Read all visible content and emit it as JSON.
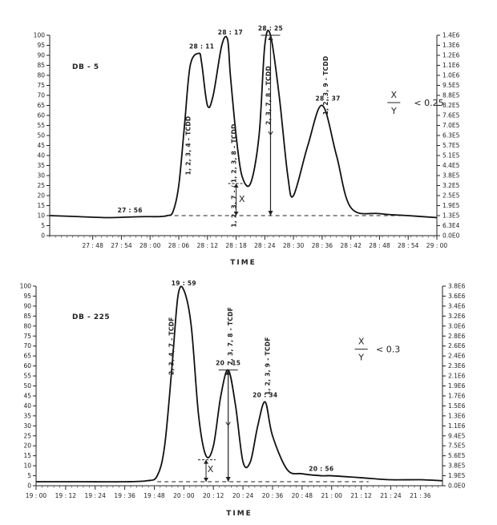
{
  "chart_data": [
    {
      "type": "line",
      "title": "DB - 5",
      "xlabel": "TIME",
      "x_ticks": [
        "27 : 48",
        "27 : 54",
        "28 : 00",
        "28 : 06",
        "28 : 12",
        "28 : 18",
        "28 : 24",
        "28 : 30",
        "28 : 36",
        "28 : 42",
        "28 : 48",
        "28 : 54",
        "29 : 00"
      ],
      "xlim_min": [
        27.65,
        29.0
      ],
      "left_ticks": [
        "0",
        "5",
        "10",
        "15",
        "20",
        "25",
        "30",
        "35",
        "40",
        "45",
        "50",
        "55",
        "60",
        "65",
        "70",
        "75",
        "80",
        "85",
        "90",
        "95",
        "100"
      ],
      "ylim": [
        0,
        100
      ],
      "right_ticks": [
        "0.0E0",
        "6.3E4",
        "1.3E5",
        "1.9E5",
        "2.5E5",
        "3.2E5",
        "3.8E5",
        "4.4E5",
        "5.1E5",
        "5.7E5",
        "6.3E5",
        "7.0E5",
        "7.6E5",
        "8.2E5",
        "8.8E5",
        "9.5E5",
        "1.0E6",
        "1.1E6",
        "1.2E6",
        "1.3E6",
        "1.4E6"
      ],
      "right_ylim": [
        0,
        1400000.0
      ],
      "series": [
        {
          "x": [
            27.65,
            27.75,
            27.85,
            27.93,
            27.98,
            28.03,
            28.06,
            28.08,
            28.1,
            28.12,
            28.14,
            28.17,
            28.18,
            28.2,
            28.22,
            28.25,
            28.27,
            28.28,
            28.3,
            28.32,
            28.35,
            28.38,
            28.4,
            28.42,
            28.45,
            28.48,
            28.5,
            28.55,
            28.6,
            28.65,
            28.7,
            28.8,
            28.9,
            29.0
          ],
          "y": [
            10,
            9.5,
            9,
            9.3,
            9.5,
            9.5,
            10,
            12,
            25,
            55,
            85,
            91,
            86,
            65,
            70,
            95,
            98,
            80,
            50,
            30,
            26,
            50,
            95,
            100,
            70,
            30,
            20,
            45,
            65,
            40,
            14,
            11,
            10,
            9
          ]
        }
      ],
      "annotations": [
        {
          "text": "28 : 11",
          "x": 28.18,
          "y": 91
        },
        {
          "text": "28 : 17",
          "x": 28.28,
          "y": 98
        },
        {
          "text": "28 : 25",
          "x": 28.42,
          "y": 100
        },
        {
          "text": "28 : 37",
          "x": 28.62,
          "y": 65
        },
        {
          "text": "27 : 56",
          "x": 27.93,
          "y": 9.3
        },
        {
          "text": "1, 2, 3, 4 - TCDD",
          "x": 28.14,
          "y": 45
        },
        {
          "text": "1, 2, 3, 7 - / 1, 2, 3, 8 - TCDD",
          "x": 28.3,
          "y": 30
        },
        {
          "text": "2, 3, 7, 8 - TCDD",
          "x": 28.42,
          "y": 70
        },
        {
          "text": "1, 2, 3, 9 - TCDD",
          "x": 28.62,
          "y": 75
        },
        {
          "text": "X",
          "x": 28.32,
          "y": 18
        },
        {
          "text": "Y",
          "x": 28.42,
          "y": 50
        },
        {
          "text": "X",
          "x": 28.85,
          "y": 70
        },
        {
          "text": "Y",
          "x": 28.85,
          "y": 62
        },
        {
          "text": "< 0.25",
          "x": 28.92,
          "y": 66
        }
      ],
      "baseline_y": 10,
      "legend": "none"
    },
    {
      "type": "line",
      "title": "DB - 225",
      "xlabel": "TIME",
      "x_ticks": [
        "19 : 00",
        "19 : 12",
        "19 : 24",
        "19 : 36",
        "19 : 48",
        "20 : 00",
        "20 : 12",
        "20 : 24",
        "20 : 36",
        "20 : 48",
        "21 : 00",
        "21 : 12",
        "21 : 24",
        "21 : 36"
      ],
      "xlim_min": [
        19.0,
        21.75
      ],
      "left_ticks": [
        "0",
        "5",
        "10",
        "15",
        "20",
        "25",
        "30",
        "35",
        "40",
        "45",
        "50",
        "55",
        "60",
        "65",
        "70",
        "75",
        "80",
        "85",
        "90",
        "95",
        "100"
      ],
      "ylim": [
        0,
        100
      ],
      "right_ticks": [
        "0.0E0",
        "1.9E5",
        "3.8E5",
        "5.6E5",
        "7.5E5",
        "9.4E5",
        "1.1E6",
        "1.3E6",
        "1.5E6",
        "1.7E6",
        "1.9E6",
        "2.1E6",
        "2.3E6",
        "2.4E6",
        "2.6E6",
        "2.8E6",
        "3.0E6",
        "3.2E6",
        "3.4E6",
        "3.6E6",
        "3.8E6"
      ],
      "right_ylim": [
        0,
        3800000.0
      ],
      "series": [
        {
          "x": [
            19.0,
            19.3,
            19.6,
            19.75,
            19.82,
            19.87,
            19.92,
            19.96,
            20.0,
            20.05,
            20.1,
            20.15,
            20.2,
            20.25,
            20.3,
            20.35,
            20.4,
            20.45,
            20.5,
            20.55,
            20.6,
            20.7,
            20.8,
            20.93,
            21.0,
            21.2,
            21.4,
            21.6,
            21.75
          ],
          "y": [
            2,
            2,
            2,
            2.5,
            5,
            20,
            60,
            95,
            98,
            80,
            35,
            15,
            20,
            45,
            58,
            40,
            12,
            12,
            30,
            42,
            25,
            8,
            6,
            5,
            5,
            4,
            3,
            3,
            2.5
          ]
        }
      ],
      "annotations": [
        {
          "text": "19 : 59",
          "x": 20.0,
          "y": 98
        },
        {
          "text": "20 : 15",
          "x": 20.3,
          "y": 58
        },
        {
          "text": "20 : 34",
          "x": 20.55,
          "y": 42
        },
        {
          "text": "20 : 56",
          "x": 20.93,
          "y": 5
        },
        {
          "text": "2, 3, 4, 7 - TCDF",
          "x": 19.93,
          "y": 70
        },
        {
          "text": "2, 3, 7, 8 - TCDF",
          "x": 20.33,
          "y": 75
        },
        {
          "text": "1, 2, 3, 9 - TCDF",
          "x": 20.58,
          "y": 60
        },
        {
          "text": "X",
          "x": 20.18,
          "y": 8
        },
        {
          "text": "Y",
          "x": 20.3,
          "y": 30
        },
        {
          "text": "X",
          "x": 21.2,
          "y": 72
        },
        {
          "text": "Y",
          "x": 21.2,
          "y": 64
        },
        {
          "text": "< 0.3",
          "x": 21.3,
          "y": 68
        }
      ],
      "baseline_y": 2,
      "legend": "none"
    }
  ]
}
